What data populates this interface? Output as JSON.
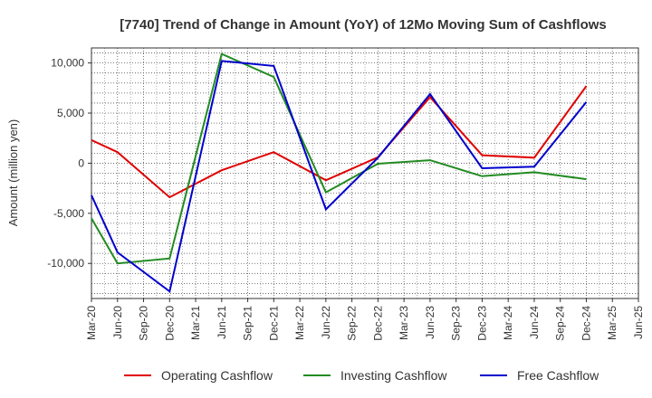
{
  "chart_data": {
    "type": "line",
    "title": "[7740]  Trend of Change in Amount (YoY) of 12Mo Moving Sum of Cashflows",
    "xlabel": "",
    "ylabel": "Amount (million yen)",
    "ylim": [
      -13500,
      11500
    ],
    "yticks": [
      10000,
      5000,
      0,
      -5000,
      -10000
    ],
    "ytick_labels": [
      "10,000",
      "5,000",
      "0",
      "-5,000",
      "-10,000"
    ],
    "grid": true,
    "legend_position": "bottom",
    "categories": [
      "Mar-20",
      "Jun-20",
      "Sep-20",
      "Dec-20",
      "Mar-21",
      "Jun-21",
      "Sep-21",
      "Dec-21",
      "Mar-22",
      "Jun-22",
      "Sep-22",
      "Dec-22",
      "Mar-23",
      "Jun-23",
      "Sep-23",
      "Dec-23",
      "Mar-24",
      "Jun-24",
      "Sep-24",
      "Dec-24",
      "Mar-25",
      "Jun-25"
    ],
    "series": [
      {
        "name": "Operating Cashflow",
        "color": "#e00000",
        "values": [
          2300,
          1100,
          null,
          -3400,
          null,
          -700,
          null,
          1100,
          null,
          -1700,
          null,
          600,
          null,
          6600,
          null,
          800,
          null,
          550,
          null,
          7700,
          null,
          null
        ]
      },
      {
        "name": "Investing Cashflow",
        "color": "#228b22",
        "values": [
          -5500,
          -10000,
          null,
          -9500,
          null,
          10900,
          null,
          8600,
          null,
          -2900,
          null,
          -50,
          null,
          300,
          null,
          -1300,
          null,
          -900,
          null,
          -1600,
          null,
          null
        ]
      },
      {
        "name": "Free Cashflow",
        "color": "#0000cc",
        "values": [
          -3200,
          -8900,
          null,
          -12800,
          null,
          10200,
          null,
          9700,
          null,
          -4600,
          null,
          550,
          null,
          6900,
          null,
          -500,
          null,
          -350,
          null,
          6100,
          null,
          null
        ]
      }
    ]
  }
}
